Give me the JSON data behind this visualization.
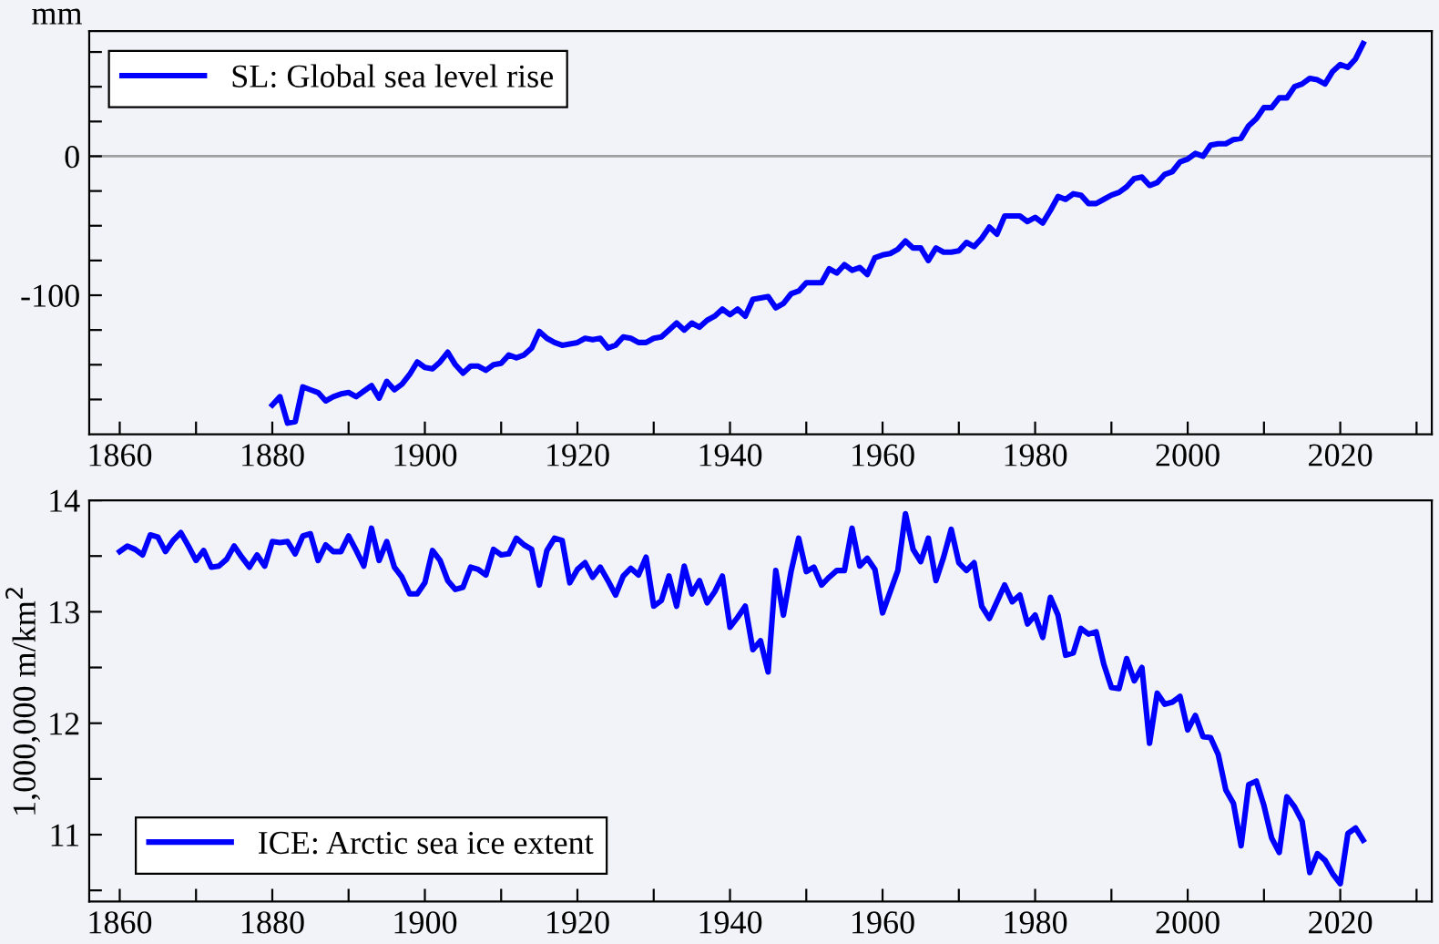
{
  "chart_data": [
    {
      "type": "line",
      "ylabel": "mm",
      "legend": "top left",
      "grid": false,
      "x": [
        1880,
        1881,
        1882,
        1883,
        1884,
        1885,
        1886,
        1887,
        1888,
        1889,
        1890,
        1891,
        1892,
        1893,
        1894,
        1895,
        1896,
        1897,
        1898,
        1899,
        1900,
        1901,
        1902,
        1903,
        1904,
        1905,
        1906,
        1907,
        1908,
        1909,
        1910,
        1911,
        1912,
        1913,
        1914,
        1915,
        1916,
        1917,
        1918,
        1919,
        1920,
        1921,
        1922,
        1923,
        1924,
        1925,
        1926,
        1927,
        1928,
        1929,
        1930,
        1931,
        1932,
        1933,
        1934,
        1935,
        1936,
        1937,
        1938,
        1939,
        1940,
        1941,
        1942,
        1943,
        1944,
        1945,
        1946,
        1947,
        1948,
        1949,
        1950,
        1951,
        1952,
        1953,
        1954,
        1955,
        1956,
        1957,
        1958,
        1959,
        1960,
        1961,
        1962,
        1963,
        1964,
        1965,
        1966,
        1967,
        1968,
        1969,
        1970,
        1971,
        1972,
        1973,
        1974,
        1975,
        1976,
        1977,
        1978,
        1979,
        1980,
        1981,
        1982,
        1983,
        1984,
        1985,
        1986,
        1987,
        1988,
        1989,
        1990,
        1991,
        1992,
        1993,
        1994,
        1995,
        1996,
        1997,
        1998,
        1999,
        2000,
        2001,
        2002,
        2003,
        2004,
        2005,
        2006,
        2007,
        2008,
        2009,
        2010,
        2011,
        2012,
        2013,
        2014,
        2015,
        2016,
        2017,
        2018,
        2019,
        2020,
        2021,
        2022,
        2023
      ],
      "series": [
        {
          "name": "SL: Global sea level rise",
          "color": "#0000ff",
          "values": [
            -179,
            -173,
            -192,
            -191,
            -166,
            -168,
            -170,
            -176,
            -173,
            -171,
            -170,
            -173,
            -169,
            -165,
            -174,
            -162,
            -168,
            -164,
            -157,
            -148,
            -152,
            -153,
            -148,
            -141,
            -150,
            -156,
            -151,
            -151,
            -154,
            -150,
            -149,
            -143,
            -145,
            -143,
            -138,
            -126,
            -131,
            -134,
            -136,
            -135,
            -134,
            -131,
            -132,
            -131,
            -138,
            -136,
            -130,
            -131,
            -134,
            -134,
            -131,
            -130,
            -125,
            -120,
            -125,
            -120,
            -123,
            -118,
            -115,
            -110,
            -114,
            -110,
            -115,
            -103,
            -102,
            -101,
            -109,
            -106,
            -99,
            -97,
            -91,
            -91,
            -91,
            -81,
            -84,
            -78,
            -82,
            -80,
            -85,
            -73,
            -71,
            -70,
            -67,
            -61,
            -66,
            -66,
            -75,
            -66,
            -69,
            -69,
            -68,
            -62,
            -65,
            -59,
            -51,
            -56,
            -43,
            -43,
            -43,
            -47,
            -44,
            -48,
            -39,
            -29,
            -31,
            -27,
            -28,
            -34,
            -34,
            -31,
            -28,
            -26,
            -22,
            -16,
            -15,
            -21,
            -19,
            -13,
            -11,
            -4,
            -2,
            2,
            0,
            8,
            9,
            9,
            12,
            13,
            22,
            27,
            35,
            35,
            42,
            42,
            50,
            52,
            56,
            55,
            52,
            61,
            66,
            64,
            70,
            81
          ]
        }
      ],
      "xlim": [
        1856,
        2032
      ],
      "xticks": [
        1860,
        {
          "value": 1870,
          "label": null
        },
        1880,
        {
          "value": 1890,
          "label": null
        },
        1900,
        {
          "value": 1910,
          "label": null
        },
        1920,
        {
          "value": 1930,
          "label": null
        },
        1940,
        {
          "value": 1950,
          "label": null
        },
        1960,
        {
          "value": 1970,
          "label": null
        },
        1980,
        {
          "value": 1990,
          "label": null
        },
        2000,
        {
          "value": 2010,
          "label": null
        },
        2020,
        {
          "value": 2030,
          "label": null
        }
      ],
      "ylim": [
        -200,
        90
      ],
      "yticks": [
        {
          "value": -175,
          "label": null
        },
        {
          "value": -150,
          "label": null
        },
        {
          "value": -125,
          "label": null
        },
        -100,
        {
          "value": -75,
          "label": null
        },
        {
          "value": -50,
          "label": null
        },
        {
          "value": -25,
          "label": null
        },
        0,
        {
          "value": 25,
          "label": null
        },
        {
          "value": 50,
          "label": null
        },
        {
          "value": 75,
          "label": null
        }
      ],
      "ref_lines": [
        {
          "axis": "y",
          "value": 0,
          "color": "#a0a0a0"
        }
      ]
    },
    {
      "type": "line",
      "ylabel": "1,000,000 m/km$^{2}$",
      "legend": "bottom left",
      "grid": false,
      "x": [
        1860,
        1861,
        1862,
        1863,
        1864,
        1865,
        1866,
        1867,
        1868,
        1869,
        1870,
        1871,
        1872,
        1873,
        1874,
        1875,
        1876,
        1877,
        1878,
        1879,
        1880,
        1881,
        1882,
        1883,
        1884,
        1885,
        1886,
        1887,
        1888,
        1889,
        1890,
        1891,
        1892,
        1893,
        1894,
        1895,
        1896,
        1897,
        1898,
        1899,
        1900,
        1901,
        1902,
        1903,
        1904,
        1905,
        1906,
        1907,
        1908,
        1909,
        1910,
        1911,
        1912,
        1913,
        1914,
        1915,
        1916,
        1917,
        1918,
        1919,
        1920,
        1921,
        1922,
        1923,
        1924,
        1925,
        1926,
        1927,
        1928,
        1929,
        1930,
        1931,
        1932,
        1933,
        1934,
        1935,
        1936,
        1937,
        1938,
        1939,
        1940,
        1941,
        1942,
        1943,
        1944,
        1945,
        1946,
        1947,
        1948,
        1949,
        1950,
        1951,
        1952,
        1953,
        1954,
        1955,
        1956,
        1957,
        1958,
        1959,
        1960,
        1961,
        1962,
        1963,
        1964,
        1965,
        1966,
        1967,
        1968,
        1969,
        1970,
        1971,
        1972,
        1973,
        1974,
        1975,
        1976,
        1977,
        1978,
        1979,
        1980,
        1981,
        1982,
        1983,
        1984,
        1985,
        1986,
        1987,
        1988,
        1989,
        1990,
        1991,
        1992,
        1993,
        1994,
        1995,
        1996,
        1997,
        1998,
        1999,
        2000,
        2001,
        2002,
        2003,
        2004,
        2005,
        2006,
        2007,
        2008,
        2009,
        2010,
        2011,
        2012,
        2013,
        2014,
        2015,
        2016,
        2017,
        2018,
        2019,
        2020,
        2021,
        2022,
        2023
      ],
      "series": [
        {
          "name": "ICE: Arctic sea ice extent",
          "color": "#0000ff",
          "values": [
            13.54,
            13.59,
            13.56,
            13.51,
            13.69,
            13.67,
            13.54,
            13.64,
            13.71,
            13.59,
            13.46,
            13.55,
            13.4,
            13.41,
            13.47,
            13.59,
            13.49,
            13.4,
            13.51,
            13.41,
            13.63,
            13.62,
            13.63,
            13.52,
            13.68,
            13.7,
            13.46,
            13.6,
            13.54,
            13.54,
            13.68,
            13.55,
            13.41,
            13.75,
            13.46,
            13.63,
            13.4,
            13.31,
            13.16,
            13.16,
            13.26,
            13.55,
            13.46,
            13.28,
            13.2,
            13.22,
            13.4,
            13.38,
            13.33,
            13.56,
            13.51,
            13.52,
            13.66,
            13.6,
            13.56,
            13.24,
            13.55,
            13.66,
            13.64,
            13.26,
            13.38,
            13.44,
            13.31,
            13.4,
            13.28,
            13.15,
            13.32,
            13.39,
            13.33,
            13.49,
            13.05,
            13.1,
            13.32,
            13.05,
            13.41,
            13.16,
            13.28,
            13.08,
            13.18,
            13.32,
            12.86,
            12.95,
            13.05,
            12.66,
            12.74,
            12.46,
            13.37,
            12.97,
            13.36,
            13.66,
            13.36,
            13.4,
            13.24,
            13.31,
            13.37,
            13.37,
            13.75,
            13.41,
            13.48,
            13.38,
            12.99,
            13.18,
            13.37,
            13.88,
            13.56,
            13.45,
            13.66,
            13.28,
            13.49,
            13.74,
            13.44,
            13.37,
            13.44,
            13.05,
            12.94,
            13.09,
            13.24,
            13.09,
            13.15,
            12.89,
            12.97,
            12.77,
            13.13,
            12.97,
            12.61,
            12.63,
            12.85,
            12.8,
            12.82,
            12.53,
            12.32,
            12.31,
            12.58,
            12.38,
            12.5,
            11.82,
            12.27,
            12.17,
            12.19,
            12.24,
            11.94,
            12.07,
            11.88,
            11.87,
            11.72,
            11.4,
            11.28,
            10.9,
            11.45,
            11.48,
            11.26,
            10.97,
            10.84,
            11.34,
            11.25,
            11.12,
            10.66,
            10.83,
            10.77,
            10.65,
            10.56,
            11.01,
            11.06,
            10.95
          ]
        }
      ],
      "xlim": [
        1856,
        2032
      ],
      "xticks": [
        1860,
        {
          "value": 1870,
          "label": null
        },
        1880,
        {
          "value": 1890,
          "label": null
        },
        1900,
        {
          "value": 1910,
          "label": null
        },
        1920,
        {
          "value": 1930,
          "label": null
        },
        1940,
        {
          "value": 1950,
          "label": null
        },
        1960,
        {
          "value": 1970,
          "label": null
        },
        1980,
        {
          "value": 1990,
          "label": null
        },
        2000,
        {
          "value": 2010,
          "label": null
        },
        2020,
        {
          "value": 2030,
          "label": null
        }
      ],
      "ylim": [
        10.4,
        14
      ],
      "yticks": [
        {
          "value": 10.5,
          "label": null
        },
        11,
        {
          "value": 11.5,
          "label": null
        },
        12,
        {
          "value": 12.5,
          "label": null
        },
        13,
        {
          "value": 13.5,
          "label": null
        },
        14
      ]
    }
  ]
}
